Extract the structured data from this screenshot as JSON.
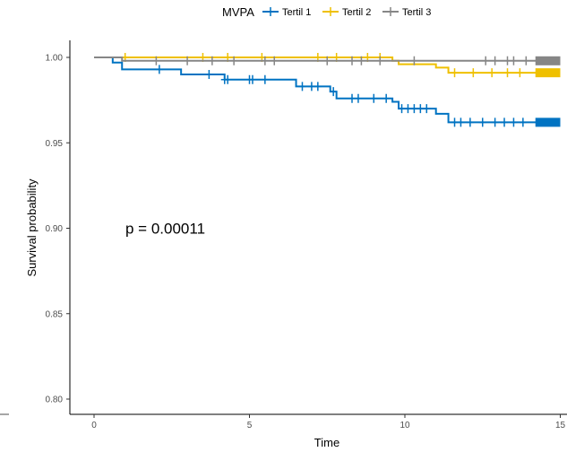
{
  "chart_data": {
    "type": "line",
    "subtype": "kaplan-meier",
    "xlabel": "Time",
    "ylabel": "Survival probability",
    "xlim": [
      -1,
      15
    ],
    "ylim": [
      0.795,
      1.01
    ],
    "x_ticks": [
      0,
      5,
      10,
      15
    ],
    "y_ticks": [
      0.8,
      0.85,
      0.9,
      0.95,
      1.0
    ],
    "x_tick_labels": [
      "0",
      "5",
      "10",
      "15"
    ],
    "y_tick_labels": [
      "0.80",
      "0.85",
      "0.90",
      "0.95",
      "1.00"
    ],
    "grid": false,
    "legend": {
      "title": "MVPA",
      "position": "top",
      "entries": [
        "Tertil 1",
        "Tertil 2",
        "Tertil 3"
      ]
    },
    "annotation": {
      "text": "p = 0.00011",
      "x": 1,
      "y": 0.9
    },
    "series": [
      {
        "name": "Tertil 1",
        "color": "#0073C2",
        "steps": [
          [
            0,
            1.0
          ],
          [
            0.6,
            0.997
          ],
          [
            0.9,
            0.993
          ],
          [
            2.2,
            0.993
          ],
          [
            2.8,
            0.99
          ],
          [
            4,
            0.99
          ],
          [
            4.2,
            0.987
          ],
          [
            6.4,
            0.987
          ],
          [
            6.5,
            0.983
          ],
          [
            7.5,
            0.983
          ],
          [
            7.6,
            0.98
          ],
          [
            7.8,
            0.976
          ],
          [
            9.5,
            0.976
          ],
          [
            9.6,
            0.974
          ],
          [
            9.8,
            0.97
          ],
          [
            10.9,
            0.97
          ],
          [
            11,
            0.967
          ],
          [
            11.4,
            0.962
          ],
          [
            15,
            0.962
          ]
        ],
        "censor": [
          [
            2.1,
            0.993
          ],
          [
            3.7,
            0.99
          ],
          [
            4.2,
            0.987
          ],
          [
            4.3,
            0.987
          ],
          [
            5,
            0.987
          ],
          [
            5.1,
            0.987
          ],
          [
            5.5,
            0.987
          ],
          [
            6.7,
            0.983
          ],
          [
            7,
            0.983
          ],
          [
            7.2,
            0.983
          ],
          [
            7.7,
            0.98
          ],
          [
            8.3,
            0.976
          ],
          [
            8.5,
            0.976
          ],
          [
            9,
            0.976
          ],
          [
            9.4,
            0.976
          ],
          [
            9.9,
            0.97
          ],
          [
            10.1,
            0.97
          ],
          [
            10.3,
            0.97
          ],
          [
            10.5,
            0.97
          ],
          [
            10.7,
            0.97
          ],
          [
            11.6,
            0.962
          ],
          [
            11.8,
            0.962
          ],
          [
            12.1,
            0.962
          ],
          [
            12.5,
            0.962
          ],
          [
            12.9,
            0.962
          ],
          [
            13.2,
            0.962
          ],
          [
            13.5,
            0.962
          ],
          [
            13.8,
            0.962
          ]
        ],
        "band": [
          14.2,
          15
        ]
      },
      {
        "name": "Tertil 2",
        "color": "#EFC000",
        "steps": [
          [
            0,
            1.0
          ],
          [
            9.4,
            1.0
          ],
          [
            9.6,
            0.998
          ],
          [
            9.8,
            0.996
          ],
          [
            10.8,
            0.996
          ],
          [
            11,
            0.994
          ],
          [
            11.4,
            0.991
          ],
          [
            15,
            0.991
          ]
        ],
        "censor": [
          [
            1,
            1.0
          ],
          [
            3.5,
            1.0
          ],
          [
            4.3,
            1.0
          ],
          [
            5.4,
            1.0
          ],
          [
            7.2,
            1.0
          ],
          [
            7.8,
            1.0
          ],
          [
            8.8,
            1.0
          ],
          [
            9.2,
            1.0
          ],
          [
            11.6,
            0.991
          ],
          [
            12.2,
            0.991
          ],
          [
            12.8,
            0.991
          ],
          [
            13.3,
            0.991
          ],
          [
            13.7,
            0.991
          ]
        ],
        "band": [
          14.2,
          15
        ]
      },
      {
        "name": "Tertil 3",
        "color": "#868686",
        "steps": [
          [
            0,
            1.0
          ],
          [
            0.8,
            1.0
          ],
          [
            0.9,
            0.998
          ],
          [
            9.2,
            0.998
          ],
          [
            9.4,
            0.998
          ],
          [
            15,
            0.998
          ]
        ],
        "censor": [
          [
            2,
            0.998
          ],
          [
            3,
            0.998
          ],
          [
            3.8,
            0.998
          ],
          [
            4.5,
            0.998
          ],
          [
            5.5,
            0.998
          ],
          [
            5.8,
            0.998
          ],
          [
            7.5,
            0.998
          ],
          [
            8.3,
            0.998
          ],
          [
            8.6,
            0.998
          ],
          [
            9.2,
            0.998
          ],
          [
            10.3,
            0.998
          ],
          [
            12.6,
            0.998
          ],
          [
            12.9,
            0.998
          ],
          [
            13.3,
            0.998
          ],
          [
            13.5,
            0.998
          ],
          [
            13.9,
            0.998
          ]
        ],
        "band": [
          14.2,
          15
        ]
      }
    ]
  }
}
